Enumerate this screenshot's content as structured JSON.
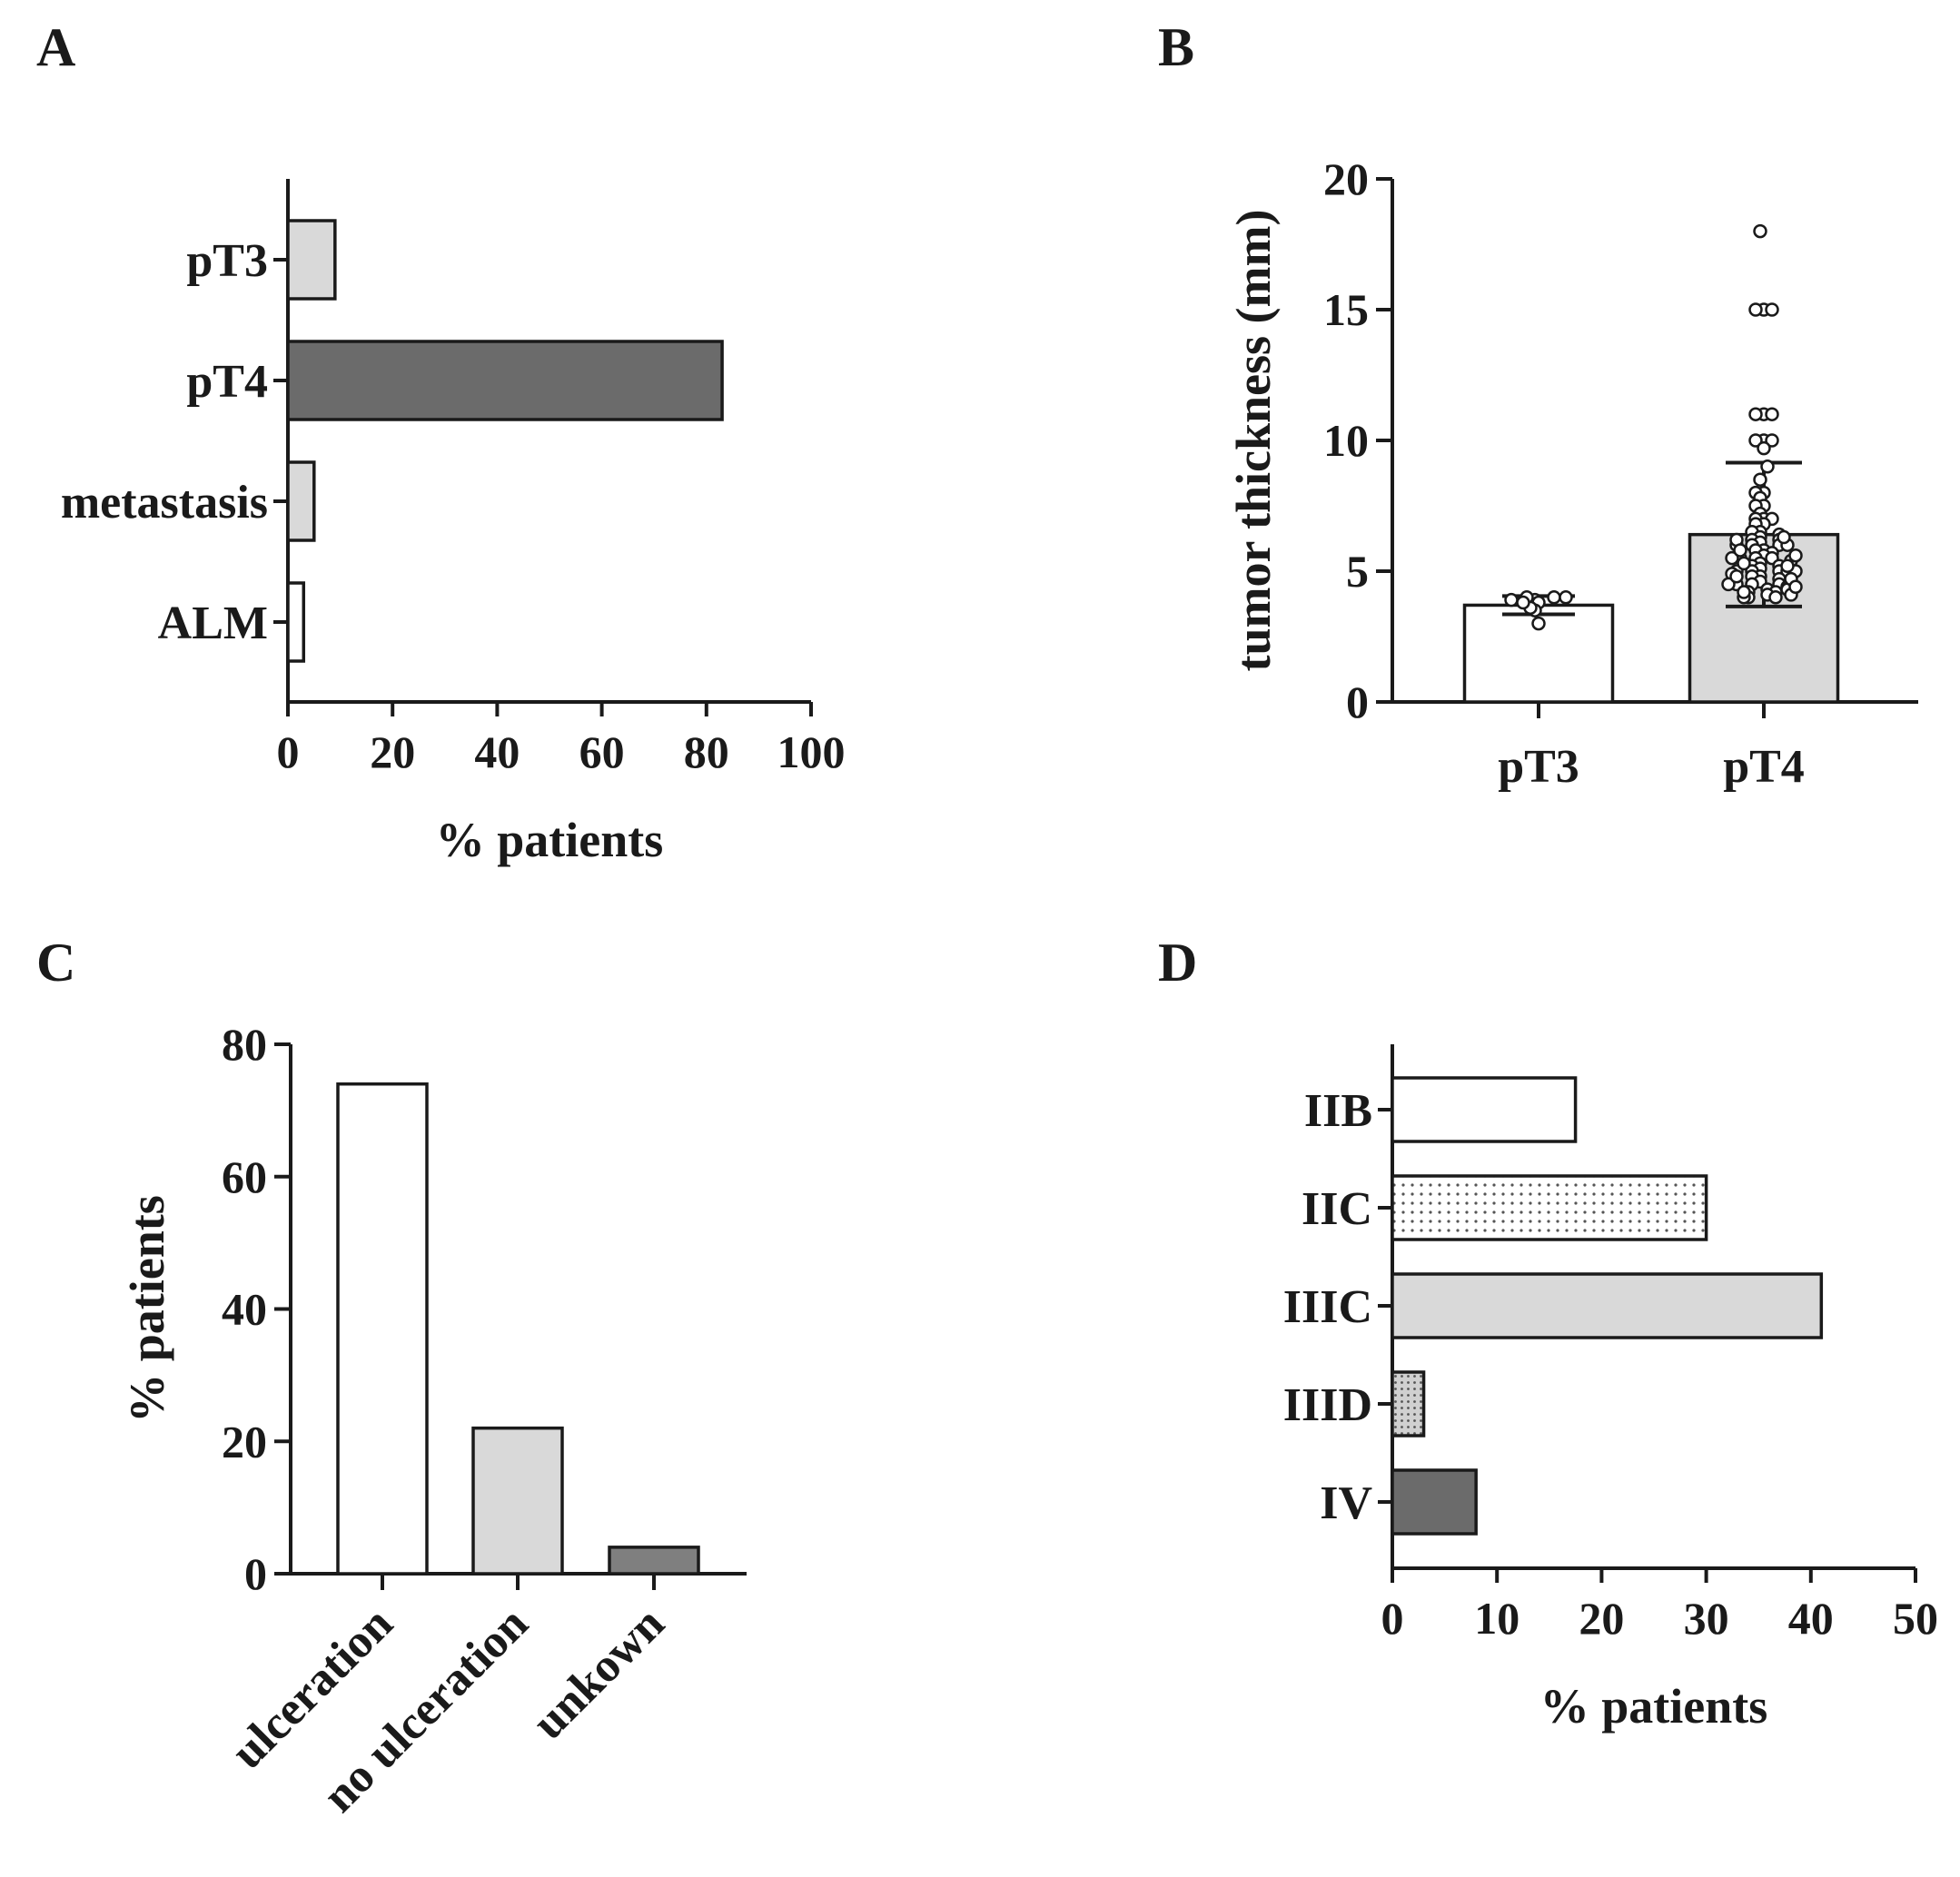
{
  "colors": {
    "white": "#ffffff",
    "light_gray": "#d9d9d9",
    "dark_gray": "#6b6b6b",
    "medium_gray": "#7f7f7f",
    "dotted": "dots",
    "dense_dotted": "dense-dots",
    "outline": "#1a1a1a"
  },
  "chart_data": [
    {
      "panel": "A",
      "type": "bar",
      "orientation": "horizontal",
      "categories": [
        "pT3",
        "pT4",
        "metastasis",
        "ALM"
      ],
      "values": [
        9,
        83,
        5,
        3
      ],
      "fills": [
        "light_gray",
        "dark_gray",
        "light_gray",
        "white"
      ],
      "xlabel": "% patients",
      "ylabel": "",
      "xlim": [
        0,
        100
      ],
      "xticks": [
        0,
        20,
        40,
        60,
        80,
        100
      ],
      "grid": false
    },
    {
      "panel": "B",
      "type": "bar",
      "orientation": "vertical",
      "categories": [
        "pT3",
        "pT4"
      ],
      "values": [
        3.7,
        6.4
      ],
      "error": [
        0.35,
        2.75
      ],
      "fills": [
        "white",
        "light_gray"
      ],
      "xlabel": "",
      "ylabel": "tumor thickness (mm)",
      "ylim": [
        0,
        20
      ],
      "yticks": [
        0,
        5,
        10,
        15,
        20
      ],
      "grid": false,
      "points": [
        {
          "group": "pT3",
          "values": [
            3.9,
            4.0,
            4.0,
            3.9,
            3.8,
            4.0,
            3.5,
            3.0,
            3.6,
            3.8
          ]
        },
        {
          "group": "pT4",
          "values": [
            18.0,
            15.0,
            15.0,
            15.0,
            11.0,
            11.0,
            11.0,
            10.0,
            10.0,
            10.0,
            9.7,
            9.0,
            8.5,
            8.0,
            8.0,
            7.8,
            7.5,
            7.5,
            7.2,
            7.0,
            7.0,
            7.0,
            6.8,
            6.8,
            6.5,
            6.5,
            6.4,
            6.3,
            6.2,
            6.2,
            6.1,
            6.0,
            6.0,
            6.0,
            5.8,
            5.8,
            5.7,
            5.6,
            5.5,
            5.5,
            5.5,
            5.4,
            5.3,
            5.2,
            5.2,
            5.1,
            5.0,
            5.0,
            5.0,
            5.0,
            4.9,
            4.8,
            4.8,
            4.7,
            4.6,
            4.5,
            4.5,
            4.5,
            4.4,
            4.3,
            4.2,
            4.2,
            4.1,
            4.0,
            4.0,
            4.0,
            6.2,
            6.0,
            5.5,
            5.0,
            4.5,
            4.2,
            6.3,
            5.8,
            5.3,
            4.8,
            4.3,
            4.1,
            5.6,
            5.2,
            4.7,
            4.4
          ]
        }
      ]
    },
    {
      "panel": "C",
      "type": "bar",
      "orientation": "vertical",
      "categories": [
        "ulceration",
        "no ulceration",
        "unkown"
      ],
      "values": [
        74,
        22,
        4
      ],
      "fills": [
        "white",
        "light_gray",
        "medium_gray"
      ],
      "xlabel": "",
      "ylabel": "% patients",
      "ylim": [
        0,
        80
      ],
      "yticks": [
        0,
        20,
        40,
        60,
        80
      ],
      "grid": false
    },
    {
      "panel": "D",
      "type": "bar",
      "orientation": "horizontal",
      "categories": [
        "IIB",
        "IIC",
        "IIIC",
        "IIID",
        "IV"
      ],
      "values": [
        17.5,
        30,
        41,
        3,
        8
      ],
      "fills": [
        "white",
        "dotted",
        "light_gray",
        "dense_dotted",
        "dark_gray"
      ],
      "xlabel": "% patients",
      "ylabel": "",
      "xlim": [
        0,
        50
      ],
      "xticks": [
        0,
        10,
        20,
        30,
        40,
        50
      ],
      "grid": false
    }
  ]
}
